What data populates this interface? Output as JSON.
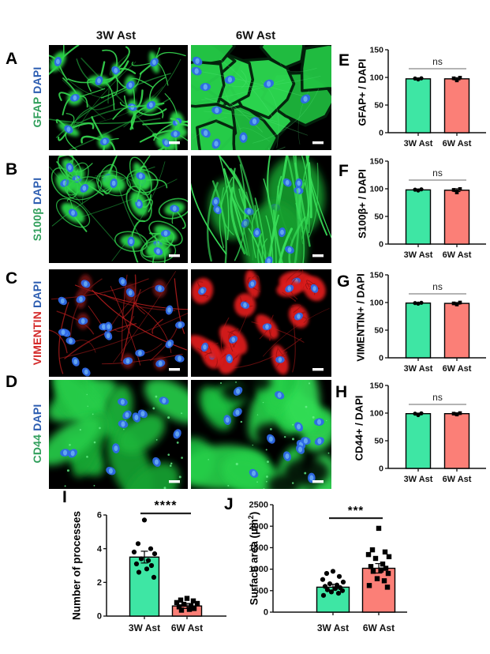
{
  "figure": {
    "column_headers": [
      "3W Ast",
      "6W Ast"
    ],
    "rows": [
      {
        "letter": "A",
        "marker": "GFAP",
        "counterstain": "DAPI",
        "marker_color": "#2f9e5a",
        "counterstain_color": "#2b5cb0",
        "patterns": [
          "stellate-green",
          "confluent-green"
        ]
      },
      {
        "letter": "B",
        "marker": "S100β",
        "counterstain": "DAPI",
        "marker_color": "#2f9e5a",
        "counterstain_color": "#2b5cb0",
        "patterns": [
          "spindle-green",
          "fibrous-green"
        ]
      },
      {
        "letter": "C",
        "marker": "VIMENTIN",
        "counterstain": "DAPI",
        "marker_color": "#d42a2a",
        "counterstain_color": "#2b5cb0",
        "patterns": [
          "filament-red",
          "dense-red"
        ]
      },
      {
        "letter": "D",
        "marker": "CD44",
        "counterstain": "DAPI",
        "marker_color": "#2f9e5a",
        "counterstain_color": "#2b5cb0",
        "patterns": [
          "flat-green-dark",
          "flat-green-bright"
        ]
      }
    ],
    "scale_bars": true
  },
  "colors": {
    "bar_green": "#3ee6a4",
    "bar_salmon": "#fb7f77",
    "axis": "#111111",
    "points": "#000000",
    "ns_line": "#888888",
    "sig_line": "#222222",
    "stain_green": "#2bd449",
    "stain_red": "#dc1d1d",
    "nucleus_blue": "#2e69e8",
    "scale_bar": "#ffffff"
  },
  "chart_data": [
    {
      "panel": "E",
      "type": "bar",
      "ylabel": "GFAP+ / DAPI",
      "categories": [
        "3W Ast",
        "6W Ast"
      ],
      "values": [
        97.5,
        97.5
      ],
      "errors": [
        1.5,
        2
      ],
      "points": [
        [
          96.5,
          98,
          98.5
        ],
        [
          94.5,
          98.5,
          99.5
        ]
      ],
      "ylim": [
        0,
        150
      ],
      "yticks": [
        0,
        50,
        100,
        150
      ],
      "significance": "ns",
      "point_shapes": [
        "circle",
        "square"
      ]
    },
    {
      "panel": "F",
      "type": "bar",
      "ylabel": "S100β+ / DAPI",
      "categories": [
        "3W Ast",
        "6W Ast"
      ],
      "values": [
        98,
        97.5
      ],
      "errors": [
        1.5,
        2.5
      ],
      "points": [
        [
          97,
          98.5,
          99
        ],
        [
          93.5,
          98,
          99.5
        ]
      ],
      "ylim": [
        0,
        150
      ],
      "yticks": [
        0,
        50,
        100,
        150
      ],
      "significance": "ns",
      "point_shapes": [
        "circle",
        "square"
      ]
    },
    {
      "panel": "G",
      "type": "bar",
      "ylabel": "VIMENTIN+ / DAPI",
      "categories": [
        "3W Ast",
        "6W Ast"
      ],
      "values": [
        99,
        98.5
      ],
      "errors": [
        1,
        1.5
      ],
      "points": [
        [
          98,
          99,
          99.5
        ],
        [
          96.5,
          98.5,
          100
        ]
      ],
      "ylim": [
        0,
        150
      ],
      "yticks": [
        0,
        50,
        100,
        150
      ],
      "significance": "ns",
      "point_shapes": [
        "circle",
        "square"
      ]
    },
    {
      "panel": "H",
      "type": "bar",
      "ylabel": "CD44+ / DAPI",
      "categories": [
        "3W Ast",
        "6W Ast"
      ],
      "values": [
        99,
        99
      ],
      "errors": [
        1,
        1.5
      ],
      "points": [
        [
          96.5,
          99,
          99.5
        ],
        [
          97.5,
          99,
          100
        ]
      ],
      "ylim": [
        0,
        150
      ],
      "yticks": [
        0,
        50,
        100,
        150
      ],
      "significance": "ns",
      "point_shapes": [
        "circle",
        "square"
      ]
    },
    {
      "panel": "I",
      "type": "bar",
      "ylabel": "Number of processes",
      "categories": [
        "3W Ast",
        "6W Ast"
      ],
      "values": [
        3.5,
        0.6
      ],
      "errors": [
        0.35,
        0.15
      ],
      "points": [
        [
          5.7,
          4.3,
          4.0,
          3.8,
          3.7,
          3.4,
          3.3,
          3.1,
          3.0,
          2.8,
          2.6,
          2.3
        ],
        [
          1.05,
          0.95,
          0.9,
          0.8,
          0.75,
          0.7,
          0.6,
          0.55,
          0.45,
          0.4,
          0.35
        ]
      ],
      "ylim": [
        0,
        6
      ],
      "yticks": [
        0,
        2,
        4,
        6
      ],
      "significance": "****",
      "point_shapes": [
        "circle",
        "square"
      ]
    },
    {
      "panel": "J",
      "type": "bar",
      "ylabel_pre": "Surface area (µm",
      "ylabel_sup": "2",
      "ylabel_post": ")",
      "categories": [
        "3W Ast",
        "6W Ast"
      ],
      "values": [
        580,
        1020
      ],
      "errors": [
        70,
        110
      ],
      "points": [
        [
          950,
          900,
          830,
          760,
          700,
          660,
          630,
          600,
          570,
          550,
          520,
          500,
          470,
          440,
          390
        ],
        [
          1950,
          1450,
          1400,
          1340,
          1290,
          1250,
          1120,
          1060,
          1020,
          980,
          950,
          900,
          780,
          730,
          620,
          580
        ]
      ],
      "ylim": [
        0,
        2500
      ],
      "yticks": [
        0,
        500,
        1000,
        1500,
        2000,
        2500
      ],
      "significance": "***",
      "point_shapes": [
        "circle",
        "square"
      ]
    }
  ]
}
